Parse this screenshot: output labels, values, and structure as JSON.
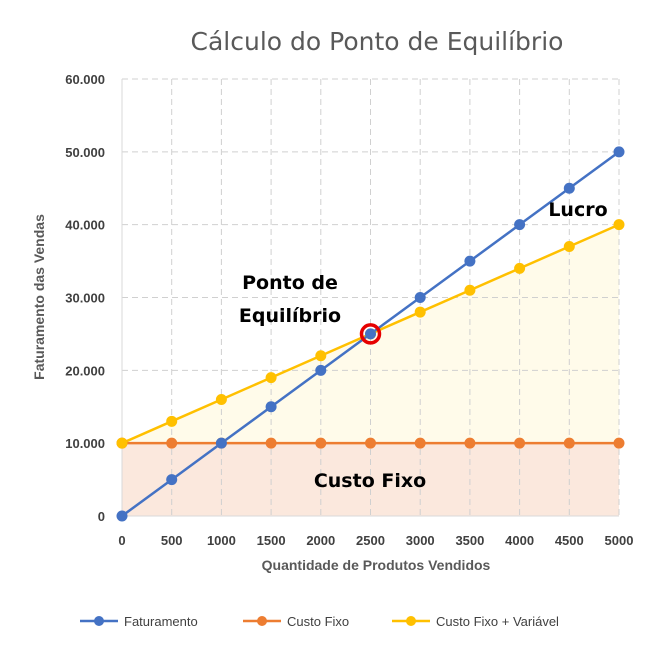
{
  "chart_data": {
    "type": "line",
    "title": "Cálculo do Ponto de Equilíbrio",
    "xlabel": "Quantidade de Produtos Vendidos",
    "ylabel": "Faturamento das Vendas",
    "x": [
      0,
      500,
      1000,
      1500,
      2000,
      2500,
      3000,
      3500,
      4000,
      4500,
      5000
    ],
    "x_tick_labels": [
      "0",
      "500",
      "1000",
      "1500",
      "2000",
      "2500",
      "3000",
      "3500",
      "4000",
      "4500",
      "5000"
    ],
    "y_tick_labels": [
      "0",
      "10.000",
      "20.000",
      "30.000",
      "40.000",
      "50.000",
      "60.000"
    ],
    "y_ticks": [
      0,
      10000,
      20000,
      30000,
      40000,
      50000,
      60000
    ],
    "xlim": [
      0,
      5000
    ],
    "ylim": [
      0,
      60000
    ],
    "grid": true,
    "legend_position": "bottom",
    "series": [
      {
        "name": "Faturamento",
        "color": "#4472C4",
        "values": [
          0,
          5000,
          10000,
          15000,
          20000,
          25000,
          30000,
          35000,
          40000,
          45000,
          50000
        ]
      },
      {
        "name": "Custo Fixo",
        "color": "#ED7D31",
        "values": [
          10000,
          10000,
          10000,
          10000,
          10000,
          10000,
          10000,
          10000,
          10000,
          10000,
          10000
        ]
      },
      {
        "name": "Custo Fixo + Variável",
        "color": "#FFC000",
        "values": [
          10000,
          13000,
          16000,
          19000,
          22000,
          25000,
          28000,
          31000,
          34000,
          37000,
          40000
        ]
      }
    ],
    "annotations": {
      "break_even_line1": "Ponto de",
      "break_even_line2": "Equilíbrio",
      "break_even_point": {
        "x": 2500,
        "y": 25000
      },
      "profit": "Lucro",
      "fixed_cost": "Custo Fixo"
    }
  }
}
